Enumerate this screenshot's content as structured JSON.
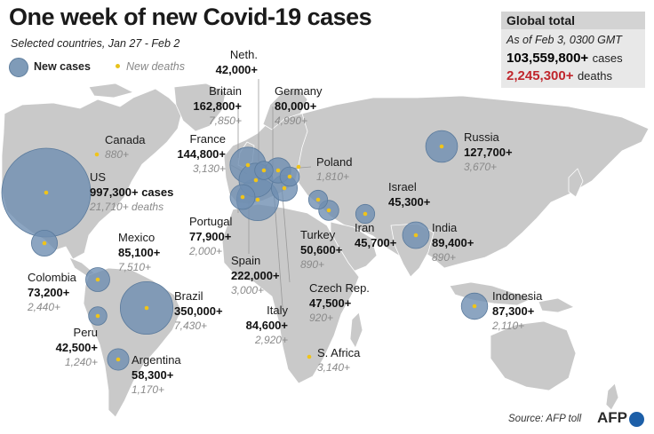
{
  "title": "One week of new Covid-19 cases",
  "subtitle": "Selected countries, Jan 27 - Feb 2",
  "legend": {
    "cases_label": "New cases",
    "deaths_label": "New deaths"
  },
  "global_total": {
    "title": "Global total",
    "as_of": "As of Feb 3, 0300 GMT",
    "cases_value": "103,559,800+",
    "cases_unit": "cases",
    "deaths_value": "2,245,300+",
    "deaths_unit": "deaths"
  },
  "colors": {
    "land": "#c9c9c9",
    "water": "#ffffff",
    "bubble_fill": "#6f8fb1",
    "bubble_stroke": "#5a7a9c",
    "death_dot": "#f0c419",
    "deaths_total": "#c0272d"
  },
  "countries": [
    {
      "name": "US",
      "cases": "997,300+ cases",
      "deaths": "21,710+ deaths",
      "new_cases": 997300,
      "new_deaths": 21710
    },
    {
      "name": "Canada",
      "cases": "",
      "deaths": "880+",
      "new_cases": null,
      "new_deaths": 880
    },
    {
      "name": "Mexico",
      "cases": "85,100+",
      "deaths": "7,510+",
      "new_cases": 85100,
      "new_deaths": 7510
    },
    {
      "name": "Colombia",
      "cases": "73,200+",
      "deaths": "2,440+",
      "new_cases": 73200,
      "new_deaths": 2440
    },
    {
      "name": "Peru",
      "cases": "42,500+",
      "deaths": "1,240+",
      "new_cases": 42500,
      "new_deaths": 1240
    },
    {
      "name": "Brazil",
      "cases": "350,000+",
      "deaths": "7,430+",
      "new_cases": 350000,
      "new_deaths": 7430
    },
    {
      "name": "Argentina",
      "cases": "58,300+",
      "deaths": "1,170+",
      "new_cases": 58300,
      "new_deaths": 1170
    },
    {
      "name": "Britain",
      "cases": "162,800+",
      "deaths": "7,850+",
      "new_cases": 162800,
      "new_deaths": 7850
    },
    {
      "name": "Neth.",
      "cases": "42,000+",
      "deaths": "",
      "new_cases": 42000,
      "new_deaths": null
    },
    {
      "name": "Germany",
      "cases": "80,000+",
      "deaths": "4,990+",
      "new_cases": 80000,
      "new_deaths": 4990
    },
    {
      "name": "France",
      "cases": "144,800+",
      "deaths": "3,130+",
      "new_cases": 144800,
      "new_deaths": 3130
    },
    {
      "name": "Poland",
      "cases": "",
      "deaths": "1,810+",
      "new_cases": null,
      "new_deaths": 1810
    },
    {
      "name": "Portugal",
      "cases": "77,900+",
      "deaths": "2,000+",
      "new_cases": 77900,
      "new_deaths": 2000
    },
    {
      "name": "Spain",
      "cases": "222,000+",
      "deaths": "3,000+",
      "new_cases": 222000,
      "new_deaths": 3000
    },
    {
      "name": "Italy",
      "cases": "84,600+",
      "deaths": "2,920+",
      "new_cases": 84600,
      "new_deaths": 2920
    },
    {
      "name": "Czech Rep.",
      "cases": "47,500+",
      "deaths": "920+",
      "new_cases": 47500,
      "new_deaths": 920
    },
    {
      "name": "Turkey",
      "cases": "50,600+",
      "deaths": "890+",
      "new_cases": 50600,
      "new_deaths": 890
    },
    {
      "name": "Israel",
      "cases": "45,300+",
      "deaths": "",
      "new_cases": 45300,
      "new_deaths": null
    },
    {
      "name": "Iran",
      "cases": "45,700+",
      "deaths": "",
      "new_cases": 45700,
      "new_deaths": null
    },
    {
      "name": "India",
      "cases": "89,400+",
      "deaths": "890+",
      "new_cases": 89400,
      "new_deaths": 890
    },
    {
      "name": "Russia",
      "cases": "127,700+",
      "deaths": "3,670+",
      "new_cases": 127700,
      "new_deaths": 3670
    },
    {
      "name": "Indonesia",
      "cases": "87,300+",
      "deaths": "2,110+",
      "new_cases": 87300,
      "new_deaths": 2110
    },
    {
      "name": "S. Africa",
      "cases": "",
      "deaths": "3,140+",
      "new_cases": null,
      "new_deaths": 3140
    }
  ],
  "source": "Source: AFP toll",
  "logo": "AFP"
}
